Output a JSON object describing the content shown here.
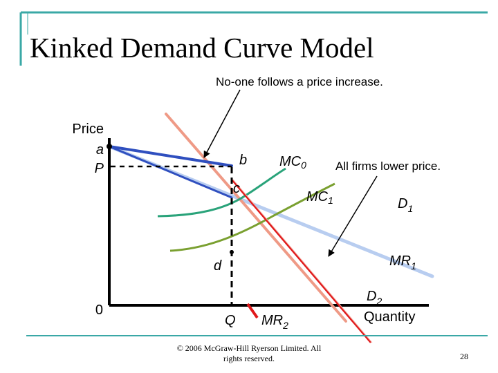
{
  "slide": {
    "title": "Kinked Demand Curve Model",
    "footer": {
      "copyright_line1": "© 2006 McGraw-Hill Ryerson Limited.  All",
      "copyright_line2": "rights reserved.",
      "page_number": "28"
    },
    "colors": {
      "frame": "#3aa8a6",
      "axis": "#000000",
      "demand_d1": "#b8cdf0",
      "demand_d2_upper": "#2f4fbf",
      "marginal_revenue_mr2": "#e0191b",
      "demand_d2_pink": "#ef9a86",
      "mc0": "#2aa37a",
      "mc1": "#7aa030",
      "text": "#000000"
    }
  },
  "diagram": {
    "annotation_top": "No-one follows a price increase.",
    "annotation_right": "All firms lower price.",
    "y_axis_label": "Price",
    "x_axis_label": "Quantity",
    "origin": "0",
    "point_a": "a",
    "price_P": "P",
    "point_b": "b",
    "point_c": "c",
    "point_d": "d",
    "quantity_Q": "Q",
    "mc0": {
      "base": "MC",
      "sub": "0"
    },
    "mc1": {
      "base": "MC",
      "sub": "1"
    },
    "d1": {
      "base": "D",
      "sub": "1"
    },
    "mr1": {
      "base": "MR",
      "sub": "1"
    },
    "d2": {
      "base": "D",
      "sub": "2"
    },
    "mr2": {
      "base": "MR",
      "sub": "2"
    }
  }
}
